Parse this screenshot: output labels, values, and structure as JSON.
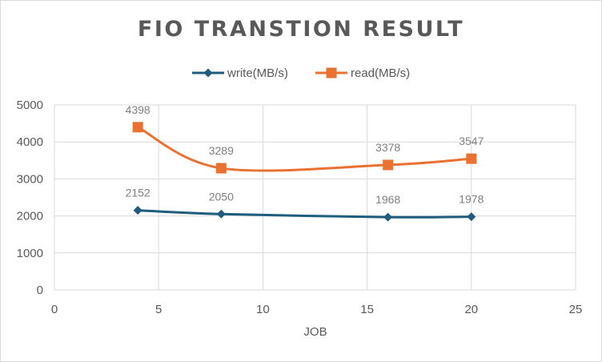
{
  "chart_data": {
    "type": "scatter",
    "title": "FIO TRANSTION RESULT",
    "xlabel": "JOB",
    "ylabel": "",
    "xlim": [
      0,
      25
    ],
    "ylim": [
      0,
      5000
    ],
    "xticks": [
      0,
      5,
      10,
      15,
      20,
      25
    ],
    "yticks": [
      0,
      1000,
      2000,
      3000,
      4000,
      5000
    ],
    "grid": true,
    "legend_position": "top",
    "smooth_lines": true,
    "series": [
      {
        "name": "write(MB/s)",
        "color": "#1f5c7e",
        "marker": "diamond",
        "x": [
          4,
          8,
          16,
          20
        ],
        "y": [
          2152,
          2050,
          1968,
          1978
        ],
        "labels": [
          "2152",
          "2050",
          "1968",
          "1978"
        ]
      },
      {
        "name": "read(MB/s)",
        "color": "#e97132",
        "marker": "square",
        "x": [
          4,
          8,
          16,
          20
        ],
        "y": [
          4398,
          3289,
          3378,
          3547
        ],
        "labels": [
          "4398",
          "3289",
          "3378",
          "3547"
        ]
      }
    ]
  }
}
